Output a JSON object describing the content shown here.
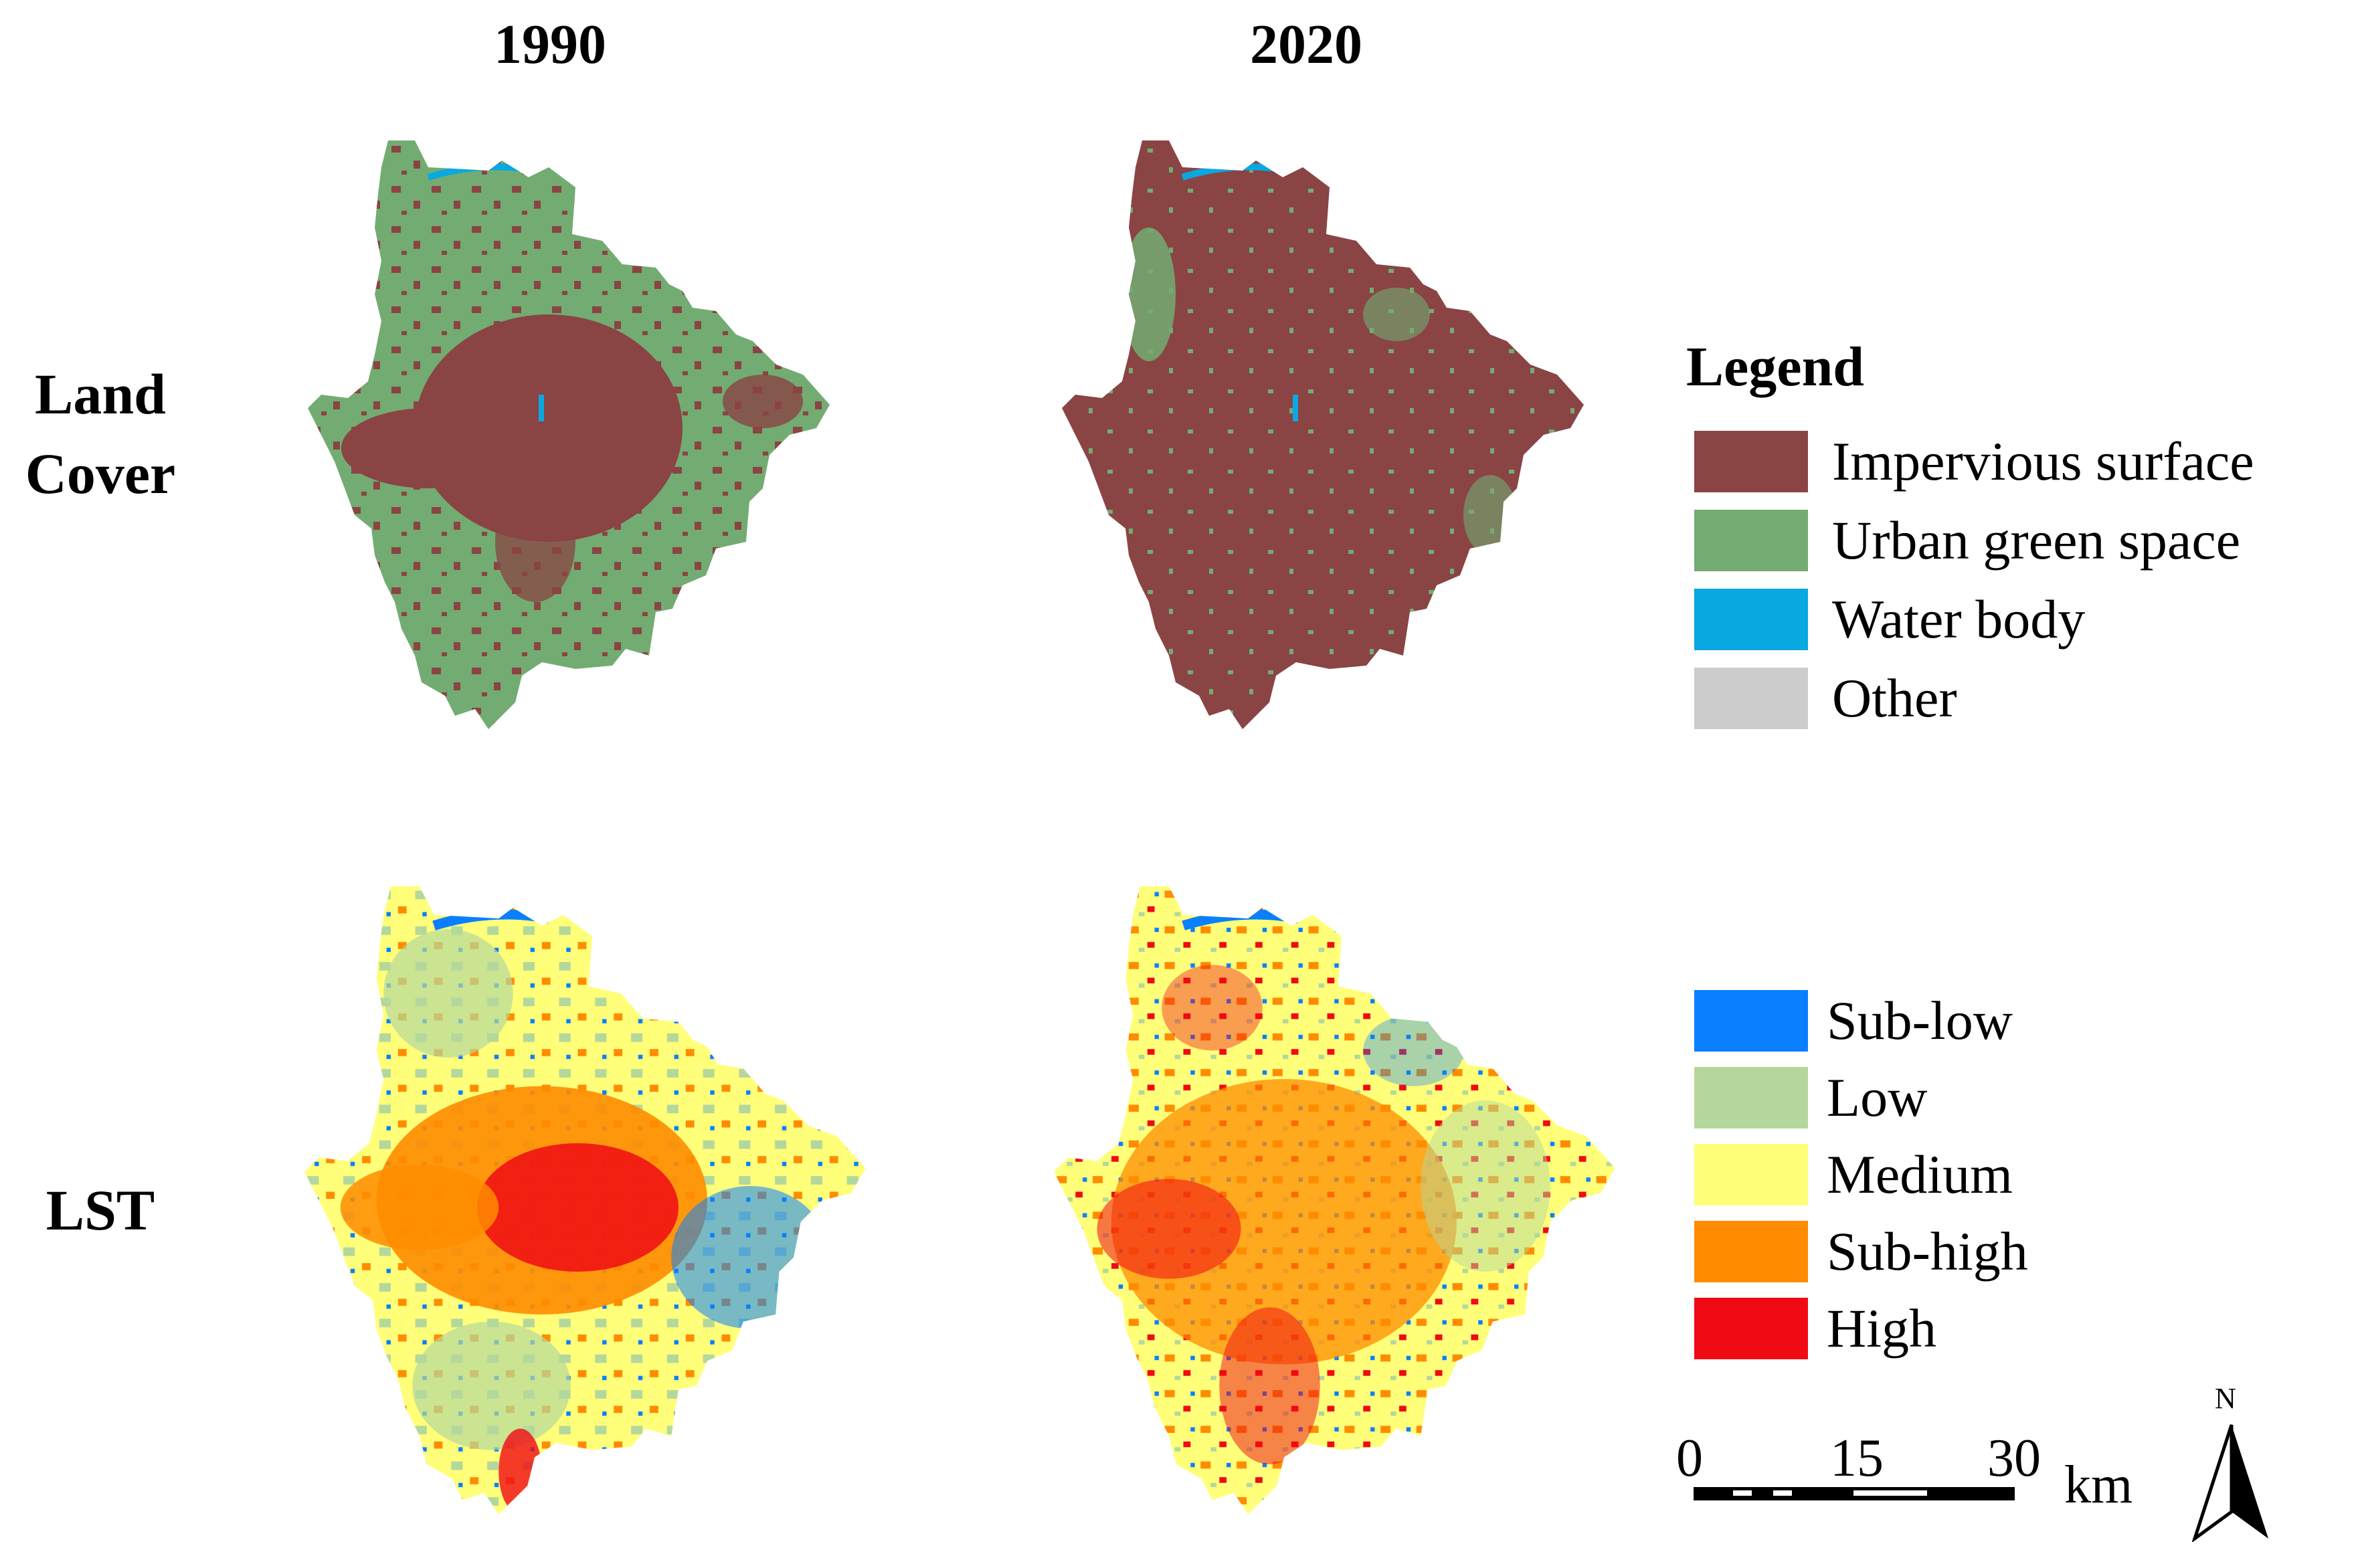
{
  "columns": [
    "1990",
    "2020"
  ],
  "rows": {
    "land_cover": "Land\nCover",
    "lst": "LST"
  },
  "land_cover_legend": {
    "title": "Legend",
    "items": [
      {
        "label": "Impervious surface",
        "color": "#8a4444"
      },
      {
        "label": "Urban green space",
        "color": "#72ac72"
      },
      {
        "label": "Water body",
        "color": "#0aa8e0"
      },
      {
        "label": "Other",
        "color": "#cccccc"
      }
    ]
  },
  "lst_legend": {
    "items": [
      {
        "label": "Sub-low",
        "color": "#0a7fff"
      },
      {
        "label": "Low",
        "color": "#b4d89c"
      },
      {
        "label": "Medium",
        "color": "#ffff7a"
      },
      {
        "label": "Sub-high",
        "color": "#ff8c00"
      },
      {
        "label": "High",
        "color": "#f00a14"
      }
    ]
  },
  "scale_bar": {
    "ticks": [
      "0",
      "15",
      "30"
    ],
    "unit": "km"
  },
  "north_arrow": {
    "label": "N",
    "icon": "north-arrow-icon"
  }
}
